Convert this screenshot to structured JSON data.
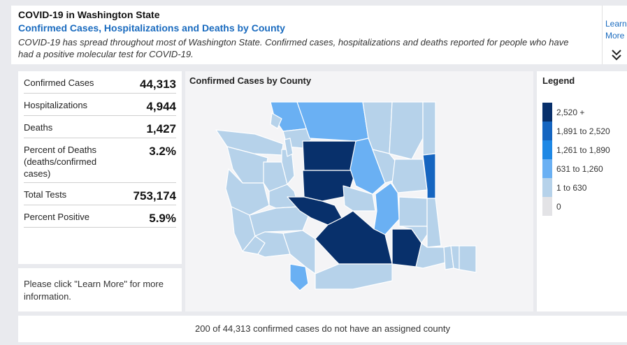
{
  "header": {
    "title": "COVID-19 in Washington State",
    "subtitle": "Confirmed Cases, Hospitalizations and Deaths by County",
    "description": "COVID-19 has spread throughout most of Washington State. Confirmed cases, hospitalizations and deaths reported for people who have had a positive molecular test for COVID-19."
  },
  "learn_more": {
    "line1": "Learn",
    "line2": "More",
    "icon": "double-chevron-down-icon"
  },
  "stats": [
    {
      "label": "Confirmed Cases",
      "value": "44,313"
    },
    {
      "label": "Hospitalizations",
      "value": "4,944"
    },
    {
      "label": "Deaths",
      "value": "1,427"
    },
    {
      "label": "Percent of Deaths (deaths/confirmed cases)",
      "value": "3.2%"
    },
    {
      "label": "Total Tests",
      "value": "753,174"
    },
    {
      "label": "Percent Positive",
      "value": "5.9%"
    }
  ],
  "note": "Please click \"Learn More\" for more information.",
  "map": {
    "title": "Confirmed Cases by County"
  },
  "legend": {
    "title": "Legend",
    "items": [
      {
        "label": "2,520 +",
        "color": "#08306b"
      },
      {
        "label": "1,891 to 2,520",
        "color": "#1565c0"
      },
      {
        "label": "1,261 to 1,890",
        "color": "#1e88e5"
      },
      {
        "label": "631 to 1,260",
        "color": "#6ab0f3"
      },
      {
        "label": "1 to 630",
        "color": "#b6d2ea"
      },
      {
        "label": "0",
        "color": "#e3e3e6"
      }
    ]
  },
  "footer": "200 of 44,313 confirmed cases do not have an assigned county"
}
